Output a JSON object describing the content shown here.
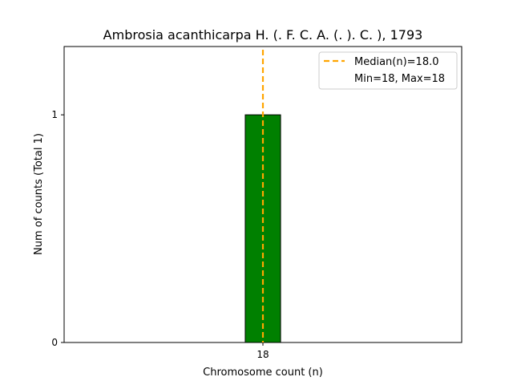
{
  "chart_data": {
    "type": "bar",
    "title": "Ambrosia acanthicarpa H. (. F. C. A. (. ). C. ), 1793",
    "xlabel": "Chromosome count (n)",
    "ylabel": "Num of counts      (Total 1)",
    "categories": [
      18
    ],
    "values": [
      1
    ],
    "x_ticks": [
      "18"
    ],
    "y_ticks": [
      0,
      1
    ],
    "xlim": [
      17.1,
      18.9
    ],
    "ylim": [
      0,
      1.3
    ],
    "bar_color": "#008000",
    "median_color": "#ffa500",
    "median_x": 18.0,
    "legend": {
      "position": "top-right",
      "entries": [
        "Median(n)=18.0",
        "Min=18, Max=18"
      ]
    }
  }
}
